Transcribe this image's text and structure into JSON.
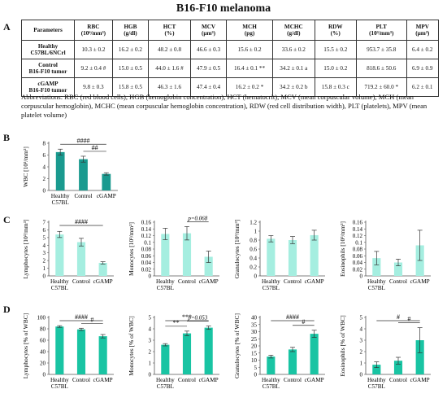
{
  "title": "B16-F10 melanoma",
  "panel_labels": {
    "a": "A",
    "b": "B",
    "c": "C",
    "d": "D"
  },
  "table": {
    "header": [
      "Parameters",
      "RBC\n(10⁶/mm³)",
      "HGB\n(g/dl)",
      "HCT\n(%)",
      "MCV\n(µm³)",
      "MCH\n(pg)",
      "MCHC\n(g/dl)",
      "RDW\n(%)",
      "PLT\n(10³/mm³)",
      "MPV\n(µm³)"
    ],
    "rows": [
      {
        "label": "Healthy\nC57BL/6NCrl",
        "cells": [
          "10.3 ± 0.2",
          "16.2 ± 0.2",
          "48.2 ± 0.8",
          "46.6 ± 0.3",
          "15.6 ± 0.2",
          "33.6 ± 0.2",
          "15.5 ± 0.2",
          "953.7 ± 35.8",
          "6.4 ± 0.2"
        ]
      },
      {
        "label": "Control\nB16-F10 tumor",
        "cells": [
          "9.2 ± 0.4 #",
          "15.0 ± 0.5",
          "44.0 ± 1.6 #",
          "47.9 ± 0.5",
          "16.4 ± 0.1 **",
          "34.2 ± 0.1 a",
          "15.0 ± 0.2",
          "818.6 ± 50.6",
          "6.9 ± 0.9"
        ]
      },
      {
        "label": "cGAMP\nB16-F10 tumor",
        "cells": [
          "9.8 ± 0.3",
          "15.8 ± 0.5",
          "46.3 ± 1.6",
          "47.4 ± 0.4",
          "16.2 ± 0.2 *",
          "34.2 ± 0.2 b",
          "15.8 ± 0.3 c",
          "719.2 ± 60.0 *",
          "6.2 ± 0.1"
        ]
      }
    ]
  },
  "abbreviations": "Abbreviations: RBC (red blood cells), HGB (hemoglobin concentration), HCT (hematocrit), MCV (mean corpuscular volume), MCH (mean corpuscular hemoglobin), MCHC (mean corpuscular hemoglobin concentration), RDW (red cell distribution width), PLT (platelets), MPV (mean platelet volume)",
  "chart_data": [
    {
      "panel": "B",
      "type": "bar",
      "categories": [
        "Healthy\nC57BL",
        "Control",
        "cGAMP"
      ],
      "values": [
        6.5,
        5.3,
        2.8
      ],
      "errors": [
        0.5,
        0.5,
        0.2
      ],
      "ylabel": "WBC [10³/mm³]",
      "ylim": [
        0,
        8
      ],
      "yticks": [
        0,
        2,
        4,
        6,
        8
      ],
      "color": "#1a9a8f",
      "annotations": [
        {
          "text": "####",
          "from": 0,
          "to": 2
        },
        {
          "text": "##",
          "from": 1,
          "to": 2
        }
      ]
    },
    {
      "panel": "C",
      "type": "bar",
      "categories": [
        "Healthy\nC57BL",
        "Control",
        "cGAMP"
      ],
      "values": [
        5.4,
        4.4,
        1.7
      ],
      "errors": [
        0.4,
        0.5,
        0.15
      ],
      "ylabel": "Lymphocytes [10³/mm³]",
      "ylim": [
        0,
        7
      ],
      "yticks": [
        0,
        1,
        2,
        3,
        4,
        5,
        6,
        7
      ],
      "color": "#a5eee0",
      "annotations": [
        {
          "text": "####",
          "from": 0,
          "to": 2
        }
      ]
    },
    {
      "panel": "C",
      "type": "bar",
      "categories": [
        "Healthy\nC57BL",
        "Control",
        "cGAMP"
      ],
      "values": [
        0.125,
        0.127,
        0.057
      ],
      "errors": [
        0.017,
        0.02,
        0.017
      ],
      "ylabel": "Monocytes [10³/mm³]",
      "ylim": [
        0,
        0.16
      ],
      "yticks": [
        0,
        0.02,
        0.04,
        0.06,
        0.08,
        0.1,
        0.12,
        0.14,
        0.16
      ],
      "color": "#a5eee0",
      "annotations": [
        {
          "text": "p=0.068",
          "from": 1,
          "to": 2
        }
      ]
    },
    {
      "panel": "C",
      "type": "bar",
      "categories": [
        "Healthy\nC57BL",
        "Control",
        "cGAMP"
      ],
      "values": [
        0.83,
        0.8,
        0.91
      ],
      "errors": [
        0.07,
        0.08,
        0.11
      ],
      "ylabel": "Granulocytes [10³/mm³]",
      "ylim": [
        0,
        1.2
      ],
      "yticks": [
        0,
        0.2,
        0.4,
        0.6,
        0.8,
        1,
        1.2
      ],
      "color": "#a5eee0",
      "annotations": []
    },
    {
      "panel": "C",
      "type": "bar",
      "categories": [
        "Healthy\nC57BL",
        "Control",
        "cGAMP"
      ],
      "values": [
        0.053,
        0.04,
        0.091
      ],
      "errors": [
        0.02,
        0.01,
        0.045
      ],
      "ylabel": "Eosinophils [10³/mm³]",
      "ylim": [
        0,
        0.16
      ],
      "yticks": [
        0,
        0.02,
        0.04,
        0.06,
        0.08,
        0.1,
        0.12,
        0.14,
        0.16
      ],
      "color": "#a5eee0",
      "annotations": []
    },
    {
      "panel": "D",
      "type": "bar",
      "categories": [
        "Healthy\nC57BL",
        "Control",
        "cGAMP"
      ],
      "values": [
        84,
        79,
        67
      ],
      "errors": [
        1.5,
        2,
        3
      ],
      "ylabel": "Lymphocytes [% of WBC]",
      "ylim": [
        0,
        100
      ],
      "yticks": [
        0,
        20,
        40,
        60,
        80,
        100
      ],
      "color": "#19c4a3",
      "annotations": [
        {
          "text": "####",
          "from": 0,
          "to": 2
        },
        {
          "text": "#",
          "from": 1,
          "to": 2
        }
      ]
    },
    {
      "panel": "D",
      "type": "bar",
      "categories": [
        "Healthy\nC57BL",
        "Control",
        "cGAMP"
      ],
      "values": [
        2.6,
        3.6,
        4.1
      ],
      "errors": [
        0.1,
        0.2,
        0.15
      ],
      "ylabel": "Monocytes [% of WBC]",
      "ylim": [
        0,
        5
      ],
      "yticks": [
        0,
        1,
        2,
        3,
        4,
        5
      ],
      "color": "#19c4a3",
      "annotations": [
        {
          "text": "***",
          "from": 0,
          "to": 2
        },
        {
          "text": "**",
          "from": 0,
          "to": 1
        },
        {
          "text": "p=0.053",
          "from": 1,
          "to": 2
        }
      ]
    },
    {
      "panel": "D",
      "type": "bar",
      "categories": [
        "Healthy\nC57BL",
        "Control",
        "cGAMP"
      ],
      "values": [
        12.5,
        17.5,
        28.5
      ],
      "errors": [
        1,
        1.5,
        2.5
      ],
      "ylabel": "Granulocytes [% of WBC]",
      "ylim": [
        0,
        40
      ],
      "yticks": [
        0,
        5,
        10,
        15,
        20,
        25,
        30,
        35,
        40
      ],
      "color": "#19c4a3",
      "annotations": [
        {
          "text": "####",
          "from": 0,
          "to": 2
        },
        {
          "text": "#",
          "from": 1,
          "to": 2
        }
      ]
    },
    {
      "panel": "D",
      "type": "bar",
      "categories": [
        "Healthy\nC57BL",
        "Control",
        "cGAMP"
      ],
      "values": [
        0.85,
        1.2,
        3
      ],
      "errors": [
        0.25,
        0.3,
        1.1
      ],
      "ylabel": "Eosinophils [% of WBC]",
      "ylim": [
        0,
        5
      ],
      "yticks": [
        0,
        1,
        2,
        3,
        4,
        5
      ],
      "color": "#19c4a3",
      "annotations": [
        {
          "text": "#",
          "from": 0,
          "to": 2
        },
        {
          "text": "#",
          "from": 1,
          "to": 2
        }
      ]
    }
  ]
}
